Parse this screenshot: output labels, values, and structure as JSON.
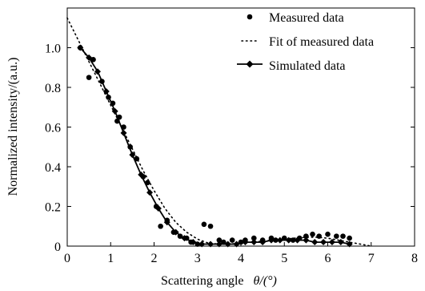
{
  "chart_data": {
    "type": "scatter",
    "title": "",
    "xlabel": "Scattering angle",
    "xlabel_symbol": "θ/(°)",
    "ylabel": "Normalized intensity/(a.u.)",
    "xlim": [
      0,
      8
    ],
    "ylim": [
      0,
      1.2
    ],
    "xticks": [
      "0",
      "1",
      "2",
      "3",
      "4",
      "5",
      "6",
      "7",
      "8"
    ],
    "yticks": [
      "0",
      "0.2",
      "0.4",
      "0.6",
      "0.8",
      "1.0"
    ],
    "xtick_values": [
      0,
      1,
      2,
      3,
      4,
      5,
      6,
      7,
      8
    ],
    "ytick_values": [
      0,
      0.2,
      0.4,
      0.6,
      0.8,
      1.0
    ],
    "grid": false,
    "legend_position": "top-right",
    "series": [
      {
        "name": "Measured data",
        "style": "markers",
        "x": [
          0.3,
          0.5,
          0.6,
          0.8,
          0.95,
          1.05,
          1.15,
          1.2,
          1.3,
          1.45,
          1.6,
          1.75,
          1.85,
          2.05,
          2.15,
          2.3,
          2.45,
          2.6,
          2.75,
          2.85,
          3.0,
          3.15,
          3.3,
          3.5,
          3.6,
          3.8,
          4.0,
          4.1,
          4.3,
          4.5,
          4.7,
          4.8,
          5.0,
          5.2,
          5.35,
          5.5,
          5.65,
          5.8,
          6.0,
          6.2,
          6.35,
          6.5
        ],
        "y": [
          1.0,
          0.85,
          0.94,
          0.83,
          0.75,
          0.72,
          0.63,
          0.65,
          0.6,
          0.5,
          0.44,
          0.35,
          0.32,
          0.2,
          0.1,
          0.13,
          0.07,
          0.05,
          0.04,
          0.02,
          0.01,
          0.11,
          0.1,
          0.03,
          0.02,
          0.03,
          0.02,
          0.03,
          0.04,
          0.03,
          0.04,
          0.03,
          0.04,
          0.03,
          0.04,
          0.05,
          0.06,
          0.05,
          0.06,
          0.05,
          0.05,
          0.04
        ]
      },
      {
        "name": "Fit of measured data",
        "style": "dotted-line",
        "x": [
          0.0,
          0.25,
          0.5,
          0.75,
          1.0,
          1.25,
          1.5,
          1.75,
          2.0,
          2.25,
          2.5,
          2.75,
          3.0,
          3.25,
          3.5,
          3.75,
          4.0,
          4.25,
          4.5,
          4.75,
          5.0,
          5.25,
          5.5,
          5.75,
          6.0,
          6.25,
          6.5,
          6.75,
          7.0
        ],
        "y": [
          1.15,
          1.04,
          0.93,
          0.82,
          0.71,
          0.6,
          0.49,
          0.38,
          0.28,
          0.19,
          0.12,
          0.07,
          0.035,
          0.015,
          0.01,
          0.01,
          0.015,
          0.02,
          0.025,
          0.03,
          0.035,
          0.04,
          0.045,
          0.045,
          0.04,
          0.03,
          0.02,
          0.01,
          0.0
        ]
      },
      {
        "name": "Simulated data",
        "style": "line-markers",
        "x": [
          0.3,
          0.5,
          0.7,
          0.9,
          1.1,
          1.3,
          1.5,
          1.7,
          1.9,
          2.1,
          2.3,
          2.5,
          2.7,
          2.9,
          3.1,
          3.3,
          3.5,
          3.7,
          3.9,
          4.1,
          4.3,
          4.5,
          4.7,
          4.9,
          5.1,
          5.3,
          5.5,
          5.7,
          5.9,
          6.1,
          6.3,
          6.5
        ],
        "y": [
          1.0,
          0.95,
          0.88,
          0.78,
          0.68,
          0.57,
          0.46,
          0.36,
          0.27,
          0.19,
          0.12,
          0.07,
          0.04,
          0.02,
          0.01,
          0.01,
          0.01,
          0.01,
          0.01,
          0.02,
          0.02,
          0.02,
          0.03,
          0.03,
          0.03,
          0.03,
          0.03,
          0.02,
          0.02,
          0.02,
          0.02,
          0.01
        ]
      }
    ]
  }
}
